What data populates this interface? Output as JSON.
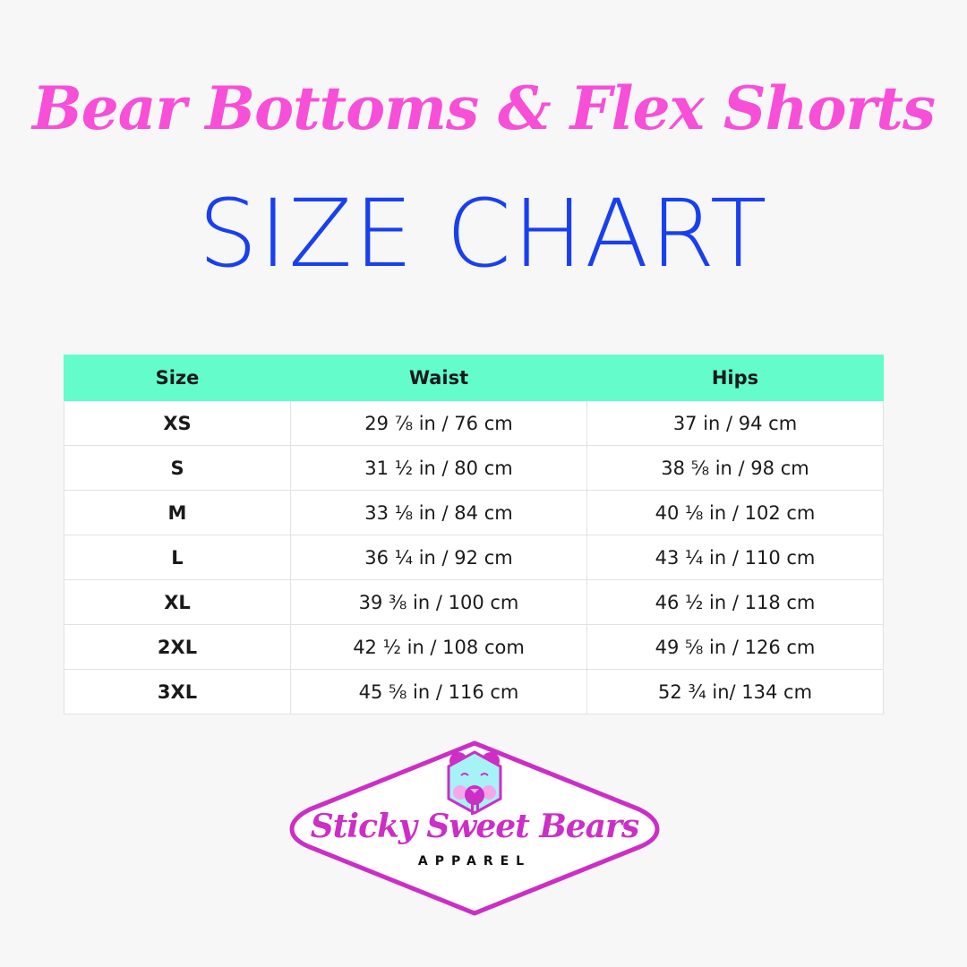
{
  "header": {
    "title": "Bear Bottoms & Flex Shorts",
    "subtitle": "SIZE CHART"
  },
  "table": {
    "columns": [
      "Size",
      "Waist",
      "Hips"
    ],
    "rows": [
      [
        "XS",
        "29 ⅞ in / 76 cm",
        "37 in / 94 cm"
      ],
      [
        "S",
        "31 ½ in / 80 cm",
        "38 ⅝ in / 98 cm"
      ],
      [
        "M",
        "33 ⅛ in / 84 cm",
        "40 ⅛ in / 102 cm"
      ],
      [
        "L",
        "36 ¼ in / 92 cm",
        "43 ¼ in / 110 cm"
      ],
      [
        "XL",
        "39 ⅜ in / 100 cm",
        "46 ½ in / 118 cm"
      ],
      [
        "2XL",
        "42 ½ in / 108 com",
        "49 ⅝ in / 126 cm"
      ],
      [
        "3XL",
        "45 ⅝ in / 116 cm",
        "52 ¾ in/ 134 cm"
      ]
    ]
  },
  "logo": {
    "name": "Sticky Sweet Bears",
    "tagline": "APPAREL"
  },
  "colors": {
    "title": "#f74fd8",
    "subtitle": "#1840f0",
    "header_bg": "#64fccb",
    "logo": "#cc2ec6"
  }
}
